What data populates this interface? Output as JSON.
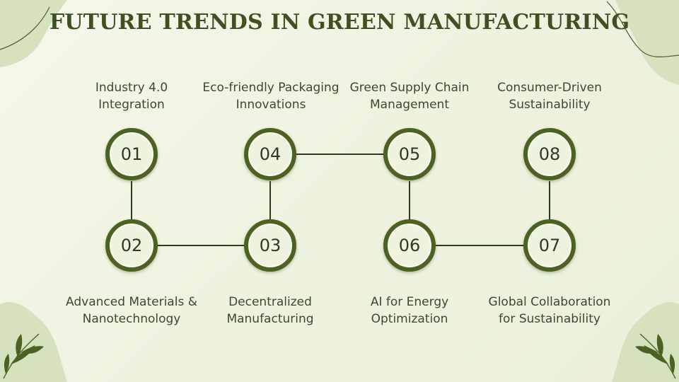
{
  "title": "FUTURE TRENDS IN GREEN MANUFACTURING",
  "colors": {
    "background": "#eef3e0",
    "accent": "#4b6222",
    "leaf": "#d6e2bd",
    "text": "#3d4a2a"
  },
  "steps": [
    {
      "number": "01",
      "line1": "Industry 4.0",
      "line2": "Integration"
    },
    {
      "number": "02",
      "line1": "Advanced Materials &",
      "line2": "Nanotechnology"
    },
    {
      "number": "03",
      "line1": "Decentralized",
      "line2": "Manufacturing"
    },
    {
      "number": "04",
      "line1": "Eco-friendly Packaging",
      "line2": "Innovations"
    },
    {
      "number": "05",
      "line1": "Green Supply Chain",
      "line2": "Management"
    },
    {
      "number": "06",
      "line1": "AI for Energy",
      "line2": "Optimization"
    },
    {
      "number": "07",
      "line1": "Global Collaboration",
      "line2": "for Sustainability"
    },
    {
      "number": "08",
      "line1": "Consumer-Driven",
      "line2": "Sustainability"
    }
  ]
}
